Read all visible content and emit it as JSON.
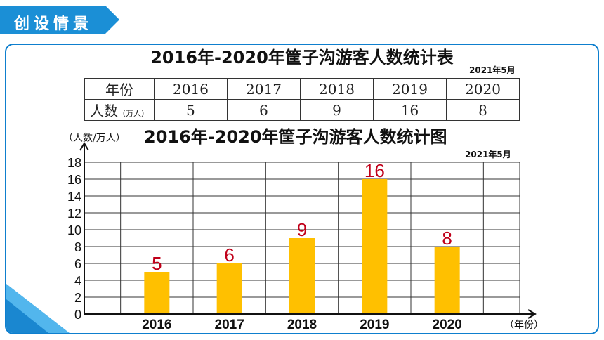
{
  "banner": {
    "label": "创设情景"
  },
  "table": {
    "title": "2016年-2020年筐子沟游客人数统计表",
    "date": "2021年5月",
    "header_label": "年份",
    "row_label": "人数",
    "row_unit": "（万人）",
    "years": [
      "2016",
      "2017",
      "2018",
      "2019",
      "2020"
    ],
    "values": [
      "5",
      "6",
      "9",
      "16",
      "8"
    ]
  },
  "chart_data": {
    "type": "bar",
    "title": "2016年-2020年筐子沟游客人数统计图",
    "date": "2021年5月",
    "ylabel": "（人数/万人）",
    "xlabel": "（年份）",
    "categories": [
      "2016",
      "2017",
      "2018",
      "2019",
      "2020"
    ],
    "values": [
      5,
      6,
      9,
      16,
      8
    ],
    "data_labels": [
      "5",
      "6",
      "9",
      "16",
      "8"
    ],
    "ylim": [
      0,
      18
    ],
    "yticks": [
      "0",
      "2",
      "4",
      "6",
      "8",
      "10",
      "12",
      "14",
      "16",
      "18"
    ],
    "grid": true,
    "colors": {
      "bar": "#ffc000",
      "label": "#c0001a",
      "grid": "#333333"
    }
  }
}
